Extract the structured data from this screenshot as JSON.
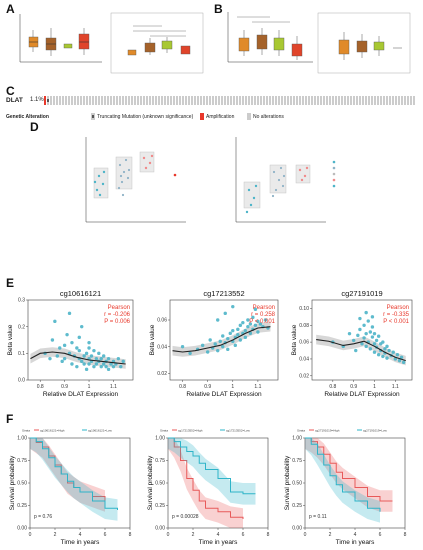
{
  "panels": {
    "A": "A",
    "B": "B",
    "C": "C",
    "D": "D",
    "E": "E",
    "F": "F"
  },
  "colors": {
    "orange": "#e08a2a",
    "brown": "#a5622a",
    "green": "#a8c832",
    "red": "#e0442a",
    "teal": "#4db4c8",
    "salmon": "#f08a8a",
    "gray": "#d9d9d9"
  },
  "oncoprint": {
    "gene": "DLAT",
    "pct": "1.1%",
    "row_label": "Genetic Alteration",
    "legend": [
      {
        "label": "Truncating Mutation (unknown significance)",
        "color": "#555555"
      },
      {
        "label": "Amplification",
        "color": "#e8382b"
      },
      {
        "label": "No alterations",
        "color": "#cccccc"
      }
    ]
  },
  "chart_data": [
    {
      "panel": "E1",
      "type": "scatter",
      "title": "cg10616121",
      "xlabel": "Relative DLAT Expression",
      "ylabel": "Beta value",
      "xlim": [
        0.75,
        1.18
      ],
      "ylim": [
        0,
        0.3
      ],
      "xticks": [
        0.8,
        0.9,
        1.0,
        1.1
      ],
      "yticks": [
        0.0,
        0.1,
        0.2,
        0.3
      ],
      "stat_lines": [
        "Pearson",
        "r = -0.206",
        "P = 0.006"
      ],
      "fit": [
        [
          0.76,
          0.08
        ],
        [
          0.8,
          0.1
        ],
        [
          0.85,
          0.105
        ],
        [
          0.9,
          0.1
        ],
        [
          0.95,
          0.085
        ],
        [
          1.0,
          0.075
        ],
        [
          1.05,
          0.07
        ],
        [
          1.1,
          0.065
        ],
        [
          1.15,
          0.06
        ]
      ],
      "points": [
        [
          0.82,
          0.1
        ],
        [
          0.84,
          0.08
        ],
        [
          0.85,
          0.15
        ],
        [
          0.87,
          0.09
        ],
        [
          0.88,
          0.12
        ],
        [
          0.89,
          0.07
        ],
        [
          0.9,
          0.13
        ],
        [
          0.9,
          0.08
        ],
        [
          0.91,
          0.17
        ],
        [
          0.92,
          0.1
        ],
        [
          0.93,
          0.06
        ],
        [
          0.93,
          0.14
        ],
        [
          0.94,
          0.09
        ],
        [
          0.95,
          0.12
        ],
        [
          0.95,
          0.05
        ],
        [
          0.96,
          0.08
        ],
        [
          0.96,
          0.11
        ],
        [
          0.97,
          0.07
        ],
        [
          0.97,
          0.2
        ],
        [
          0.98,
          0.09
        ],
        [
          0.98,
          0.06
        ],
        [
          0.99,
          0.1
        ],
        [
          0.99,
          0.04
        ],
        [
          1.0,
          0.08
        ],
        [
          1.0,
          0.12
        ],
        [
          1.0,
          0.06
        ],
        [
          1.01,
          0.07
        ],
        [
          1.01,
          0.09
        ],
        [
          1.02,
          0.05
        ],
        [
          1.02,
          0.11
        ],
        [
          1.03,
          0.08
        ],
        [
          1.03,
          0.06
        ],
        [
          1.04,
          0.07
        ],
        [
          1.04,
          0.1
        ],
        [
          1.05,
          0.05
        ],
        [
          1.05,
          0.08
        ],
        [
          1.06,
          0.06
        ],
        [
          1.06,
          0.09
        ],
        [
          1.07,
          0.07
        ],
        [
          1.07,
          0.05
        ],
        [
          1.08,
          0.08
        ],
        [
          1.08,
          0.04
        ],
        [
          1.09,
          0.06
        ],
        [
          1.1,
          0.07
        ],
        [
          1.1,
          0.05
        ],
        [
          1.11,
          0.06
        ],
        [
          1.12,
          0.08
        ],
        [
          1.13,
          0.05
        ],
        [
          1.14,
          0.07
        ],
        [
          0.86,
          0.22
        ],
        [
          0.92,
          0.25
        ],
        [
          0.96,
          0.16
        ],
        [
          1.0,
          0.14
        ]
      ]
    },
    {
      "panel": "E2",
      "type": "scatter",
      "title": "cg17213552",
      "xlabel": "Relative DLAT Expression",
      "ylabel": "Beta value",
      "xlim": [
        0.75,
        1.18
      ],
      "ylim": [
        0.015,
        0.075
      ],
      "xticks": [
        0.8,
        0.9,
        1.0,
        1.1
      ],
      "yticks": [
        0.02,
        0.04,
        0.06
      ],
      "stat_lines": [
        "Pearson",
        "r = 0.258",
        "P < 0.001"
      ],
      "fit": [
        [
          0.76,
          0.037
        ],
        [
          0.8,
          0.036
        ],
        [
          0.85,
          0.037
        ],
        [
          0.9,
          0.039
        ],
        [
          0.95,
          0.041
        ],
        [
          1.0,
          0.045
        ],
        [
          1.05,
          0.05
        ],
        [
          1.1,
          0.054
        ],
        [
          1.15,
          0.055
        ]
      ],
      "points": [
        [
          0.8,
          0.04
        ],
        [
          0.83,
          0.035
        ],
        [
          0.86,
          0.038
        ],
        [
          0.88,
          0.041
        ],
        [
          0.9,
          0.036
        ],
        [
          0.91,
          0.045
        ],
        [
          0.92,
          0.039
        ],
        [
          0.93,
          0.042
        ],
        [
          0.94,
          0.037
        ],
        [
          0.95,
          0.044
        ],
        [
          0.96,
          0.048
        ],
        [
          0.96,
          0.04
        ],
        [
          0.97,
          0.043
        ],
        [
          0.98,
          0.046
        ],
        [
          0.98,
          0.038
        ],
        [
          0.99,
          0.05
        ],
        [
          1.0,
          0.044
        ],
        [
          1.0,
          0.052
        ],
        [
          1.01,
          0.047
        ],
        [
          1.01,
          0.041
        ],
        [
          1.02,
          0.053
        ],
        [
          1.02,
          0.049
        ],
        [
          1.03,
          0.045
        ],
        [
          1.03,
          0.056
        ],
        [
          1.04,
          0.05
        ],
        [
          1.04,
          0.058
        ],
        [
          1.05,
          0.052
        ],
        [
          1.05,
          0.047
        ],
        [
          1.06,
          0.055
        ],
        [
          1.06,
          0.06
        ],
        [
          1.07,
          0.05
        ],
        [
          1.07,
          0.057
        ],
        [
          1.08,
          0.053
        ],
        [
          1.08,
          0.062
        ],
        [
          1.09,
          0.056
        ],
        [
          1.1,
          0.059
        ],
        [
          1.1,
          0.051
        ],
        [
          1.11,
          0.057
        ],
        [
          1.12,
          0.055
        ],
        [
          1.13,
          0.06
        ],
        [
          1.14,
          0.054
        ],
        [
          0.97,
          0.065
        ],
        [
          1.0,
          0.07
        ],
        [
          0.94,
          0.06
        ],
        [
          1.09,
          0.068
        ]
      ]
    },
    {
      "panel": "E3",
      "type": "scatter",
      "title": "cg27191019",
      "xlabel": "Relative DLAT Expression",
      "ylabel": "Beta value",
      "xlim": [
        0.7,
        1.18
      ],
      "ylim": [
        0.015,
        0.11
      ],
      "xticks": [
        0.8,
        0.9,
        1.0,
        1.1
      ],
      "yticks": [
        0.02,
        0.04,
        0.06,
        0.08,
        0.1
      ],
      "stat_lines": [
        "Pearson",
        "r = -0.335",
        "P < 0.001"
      ],
      "fit": [
        [
          0.72,
          0.063
        ],
        [
          0.78,
          0.061
        ],
        [
          0.85,
          0.056
        ],
        [
          0.9,
          0.058
        ],
        [
          0.95,
          0.061
        ],
        [
          1.0,
          0.055
        ],
        [
          1.05,
          0.048
        ],
        [
          1.1,
          0.042
        ],
        [
          1.15,
          0.038
        ]
      ],
      "points": [
        [
          0.8,
          0.06
        ],
        [
          0.85,
          0.055
        ],
        [
          0.88,
          0.07
        ],
        [
          0.9,
          0.062
        ],
        [
          0.91,
          0.05
        ],
        [
          0.92,
          0.068
        ],
        [
          0.93,
          0.075
        ],
        [
          0.94,
          0.058
        ],
        [
          0.95,
          0.065
        ],
        [
          0.95,
          0.08
        ],
        [
          0.96,
          0.07
        ],
        [
          0.96,
          0.055
        ],
        [
          0.97,
          0.085
        ],
        [
          0.97,
          0.06
        ],
        [
          0.98,
          0.072
        ],
        [
          0.98,
          0.052
        ],
        [
          0.99,
          0.066
        ],
        [
          0.99,
          0.078
        ],
        [
          1.0,
          0.058
        ],
        [
          1.0,
          0.07
        ],
        [
          1.0,
          0.048
        ],
        [
          1.01,
          0.062
        ],
        [
          1.01,
          0.054
        ],
        [
          1.02,
          0.067
        ],
        [
          1.02,
          0.045
        ],
        [
          1.03,
          0.058
        ],
        [
          1.03,
          0.05
        ],
        [
          1.04,
          0.06
        ],
        [
          1.04,
          0.043
        ],
        [
          1.05,
          0.052
        ],
        [
          1.05,
          0.047
        ],
        [
          1.06,
          0.055
        ],
        [
          1.06,
          0.041
        ],
        [
          1.07,
          0.05
        ],
        [
          1.08,
          0.044
        ],
        [
          1.09,
          0.048
        ],
        [
          1.1,
          0.04
        ],
        [
          1.11,
          0.045
        ],
        [
          1.12,
          0.038
        ],
        [
          1.13,
          0.042
        ],
        [
          1.14,
          0.036
        ],
        [
          0.96,
          0.095
        ],
        [
          0.99,
          0.09
        ],
        [
          0.93,
          0.088
        ]
      ]
    },
    {
      "panel": "F1",
      "type": "line",
      "ylabel": "Survival probability",
      "xlabel": "Time in years",
      "pvalue": "p = 0.76",
      "xlim": [
        0,
        8
      ],
      "ylim": [
        0,
        1
      ],
      "xticks": [
        0,
        2,
        4,
        6,
        8
      ],
      "yticks": [
        0.0,
        0.25,
        0.5,
        0.75,
        1.0
      ],
      "legend": [
        "cg10616121=High",
        "cg10616121=Low"
      ],
      "series": [
        {
          "color": "#e85a5a",
          "values": [
            [
              0,
              1
            ],
            [
              0.5,
              0.95
            ],
            [
              1,
              0.9
            ],
            [
              1.5,
              0.8
            ],
            [
              2,
              0.7
            ],
            [
              2.5,
              0.6
            ],
            [
              3,
              0.5
            ],
            [
              3.5,
              0.45
            ],
            [
              4,
              0.4
            ],
            [
              5,
              0.35
            ],
            [
              6,
              0.3
            ]
          ]
        },
        {
          "color": "#2eb4c8",
          "values": [
            [
              0,
              1
            ],
            [
              0.5,
              0.96
            ],
            [
              1,
              0.88
            ],
            [
              1.5,
              0.78
            ],
            [
              2,
              0.68
            ],
            [
              2.5,
              0.6
            ],
            [
              3,
              0.52
            ],
            [
              3.5,
              0.45
            ],
            [
              4,
              0.4
            ],
            [
              5,
              0.3
            ],
            [
              6,
              0.22
            ],
            [
              7,
              0.2
            ]
          ]
        }
      ]
    },
    {
      "panel": "F2",
      "type": "line",
      "ylabel": "Survival probability",
      "xlabel": "Time in years",
      "pvalue": "p = 0.00028",
      "xlim": [
        0,
        8
      ],
      "ylim": [
        0,
        1
      ],
      "xticks": [
        0,
        2,
        4,
        6,
        8
      ],
      "yticks": [
        0.0,
        0.25,
        0.5,
        0.75,
        1.0
      ],
      "legend": [
        "cg17213552=High",
        "cg17213552=Low"
      ],
      "series": [
        {
          "color": "#e85a5a",
          "values": [
            [
              0,
              1
            ],
            [
              0.5,
              0.9
            ],
            [
              1,
              0.75
            ],
            [
              1.5,
              0.55
            ],
            [
              2,
              0.42
            ],
            [
              2.5,
              0.3
            ],
            [
              3,
              0.22
            ],
            [
              4,
              0.18
            ],
            [
              5,
              0.12
            ],
            [
              6,
              0.1
            ]
          ]
        },
        {
          "color": "#2eb4c8",
          "values": [
            [
              0,
              1
            ],
            [
              0.5,
              0.96
            ],
            [
              1,
              0.9
            ],
            [
              1.5,
              0.85
            ],
            [
              2,
              0.8
            ],
            [
              2.5,
              0.72
            ],
            [
              3,
              0.65
            ],
            [
              4,
              0.55
            ],
            [
              5,
              0.4
            ],
            [
              6,
              0.38
            ],
            [
              7,
              0.38
            ]
          ]
        }
      ]
    },
    {
      "panel": "F3",
      "type": "line",
      "ylabel": "Survival probability",
      "xlabel": "Time in years",
      "pvalue": "p = 0.11",
      "xlim": [
        0,
        8
      ],
      "ylim": [
        0,
        1
      ],
      "xticks": [
        0,
        2,
        4,
        6,
        8
      ],
      "yticks": [
        0.0,
        0.25,
        0.5,
        0.75,
        1.0
      ],
      "legend": [
        "cg27191019=High",
        "cg27191019=Low"
      ],
      "series": [
        {
          "color": "#e85a5a",
          "values": [
            [
              0,
              1
            ],
            [
              0.5,
              0.96
            ],
            [
              1,
              0.9
            ],
            [
              1.5,
              0.82
            ],
            [
              2,
              0.72
            ],
            [
              2.5,
              0.62
            ],
            [
              3,
              0.55
            ],
            [
              4,
              0.45
            ],
            [
              5,
              0.35
            ],
            [
              6,
              0.3
            ],
            [
              7,
              0.3
            ]
          ]
        },
        {
          "color": "#2eb4c8",
          "values": [
            [
              0,
              1
            ],
            [
              0.5,
              0.93
            ],
            [
              1,
              0.82
            ],
            [
              1.5,
              0.7
            ],
            [
              2,
              0.58
            ],
            [
              2.5,
              0.48
            ],
            [
              3,
              0.4
            ],
            [
              4,
              0.3
            ],
            [
              5,
              0.22
            ],
            [
              6,
              0.18
            ]
          ]
        }
      ]
    }
  ]
}
